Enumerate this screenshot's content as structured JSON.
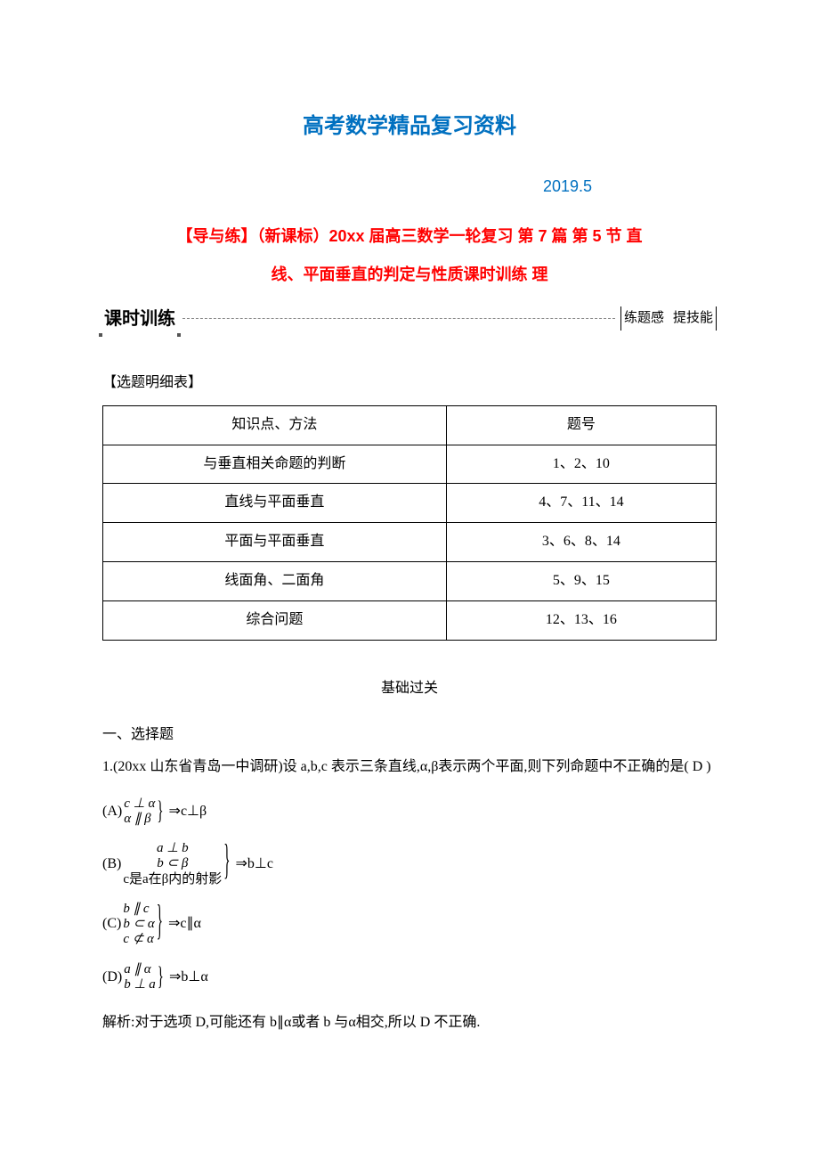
{
  "colors": {
    "title_blue": "#0070c0",
    "subtitle_red": "#ff0000",
    "text": "#000000",
    "rule": "#888888",
    "background": "#ffffff"
  },
  "typography": {
    "main_title_pt": 24,
    "subtitle_pt": 18,
    "body_pt": 16,
    "banner_pt": 20,
    "font_body": "SimSun",
    "font_heading": "SimHei",
    "font_banner": "KaiTi"
  },
  "header": {
    "main_title": "高考数学精品复习资料",
    "date": "2019.5",
    "doc_title_line1": "【导与练】（新课标）20xx 届高三数学一轮复习 第 7 篇 第 5 节 直",
    "doc_title_line2": "线、平面垂直的判定与性质课时训练 理"
  },
  "banner": {
    "left_label": "课时训练",
    "right_label_a": "练题感",
    "right_label_b": "提技能"
  },
  "topic_table": {
    "caption": "【选题明细表】",
    "headers": [
      "知识点、方法",
      "题号"
    ],
    "rows": [
      [
        "与垂直相关命题的判断",
        "1、2、10"
      ],
      [
        "直线与平面垂直",
        "4、7、11、14"
      ],
      [
        "平面与平面垂直",
        "3、6、8、14"
      ],
      [
        "线面角、二面角",
        "5、9、15"
      ],
      [
        "综合问题",
        "12、13、16"
      ]
    ],
    "col_widths_pct": [
      56,
      44
    ],
    "border_color": "#000000"
  },
  "sections": {
    "basic_label": "基础过关",
    "part1_label": "一、选择题"
  },
  "q1": {
    "stem": "1.(20xx 山东省青岛一中调研)设 a,b,c 表示三条直线,α,β表示两个平面,则下列命题中不正确的是(  D  )",
    "options": {
      "A": {
        "label": "(A)",
        "lines": [
          "c ⊥ α",
          "α ∥ β"
        ],
        "brace_scale": 2,
        "rhs": "⇒c⊥β"
      },
      "B": {
        "label": "(B)",
        "lines": [
          "a ⊥ b",
          "b ⊂ β",
          "c是a在β内的射影"
        ],
        "brace_scale": 3,
        "rhs": "⇒b⊥c"
      },
      "C": {
        "label": "(C)",
        "lines": [
          "b ∥ c",
          "b ⊂ α",
          "c ⊄ α"
        ],
        "brace_scale": 3,
        "rhs": "⇒c∥α"
      },
      "D": {
        "label": "(D)",
        "lines": [
          "a ∥ α",
          "b ⊥ a"
        ],
        "brace_scale": 2,
        "rhs": "⇒b⊥α"
      }
    },
    "explanation": "解析:对于选项 D,可能还有 b∥α或者 b 与α相交,所以 D 不正确."
  }
}
